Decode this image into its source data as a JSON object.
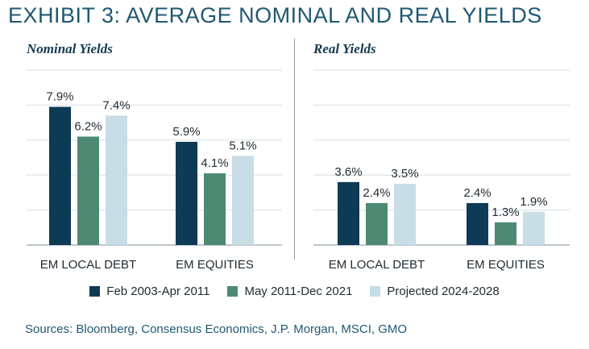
{
  "title": "EXHIBIT 3: AVERAGE NOMINAL AND REAL YIELDS",
  "source": "Sources: Bloomberg, Consensus Economics, J.P. Morgan, MSCI, GMO",
  "colors": {
    "series1": "#0f3a55",
    "series2": "#4e8a73",
    "series3": "#c8dde6",
    "title": "#1f5872",
    "grid": "#d5dfe4"
  },
  "legend": [
    {
      "label": "Feb 2003-Apr 2011",
      "color": "#0f3a55"
    },
    {
      "label": "May 2011-Dec 2021",
      "color": "#4e8a73"
    },
    {
      "label": "Projected 2024-2028",
      "color": "#c8dde6"
    }
  ],
  "chart_data": [
    {
      "type": "bar",
      "title": "Nominal Yields",
      "categories": [
        "EM LOCAL DEBT",
        "EM EQUITIES"
      ],
      "series": [
        {
          "name": "Feb 2003-Apr 2011",
          "values": [
            7.9,
            5.9
          ],
          "labels": [
            "7.9%",
            "5.9%"
          ]
        },
        {
          "name": "May 2011-Dec 2021",
          "values": [
            6.2,
            4.1
          ],
          "labels": [
            "6.2%",
            "4.1%"
          ]
        },
        {
          "name": "Projected 2024-2028",
          "values": [
            7.4,
            5.1
          ],
          "labels": [
            "7.4%",
            "5.1%"
          ]
        }
      ],
      "ylim": [
        0,
        10
      ],
      "grid": true,
      "legend": "bottom"
    },
    {
      "type": "bar",
      "title": "Real Yields",
      "categories": [
        "EM LOCAL DEBT",
        "EM EQUITIES"
      ],
      "series": [
        {
          "name": "Feb 2003-Apr 2011",
          "values": [
            3.6,
            2.4
          ],
          "labels": [
            "3.6%",
            "2.4%"
          ]
        },
        {
          "name": "May 2011-Dec 2021",
          "values": [
            2.4,
            1.3
          ],
          "labels": [
            "2.4%",
            "1.3%"
          ]
        },
        {
          "name": "Projected 2024-2028",
          "values": [
            3.5,
            1.9
          ],
          "labels": [
            "3.5%",
            "1.9%"
          ]
        }
      ],
      "ylim": [
        0,
        10
      ],
      "grid": true,
      "legend": "bottom"
    }
  ]
}
